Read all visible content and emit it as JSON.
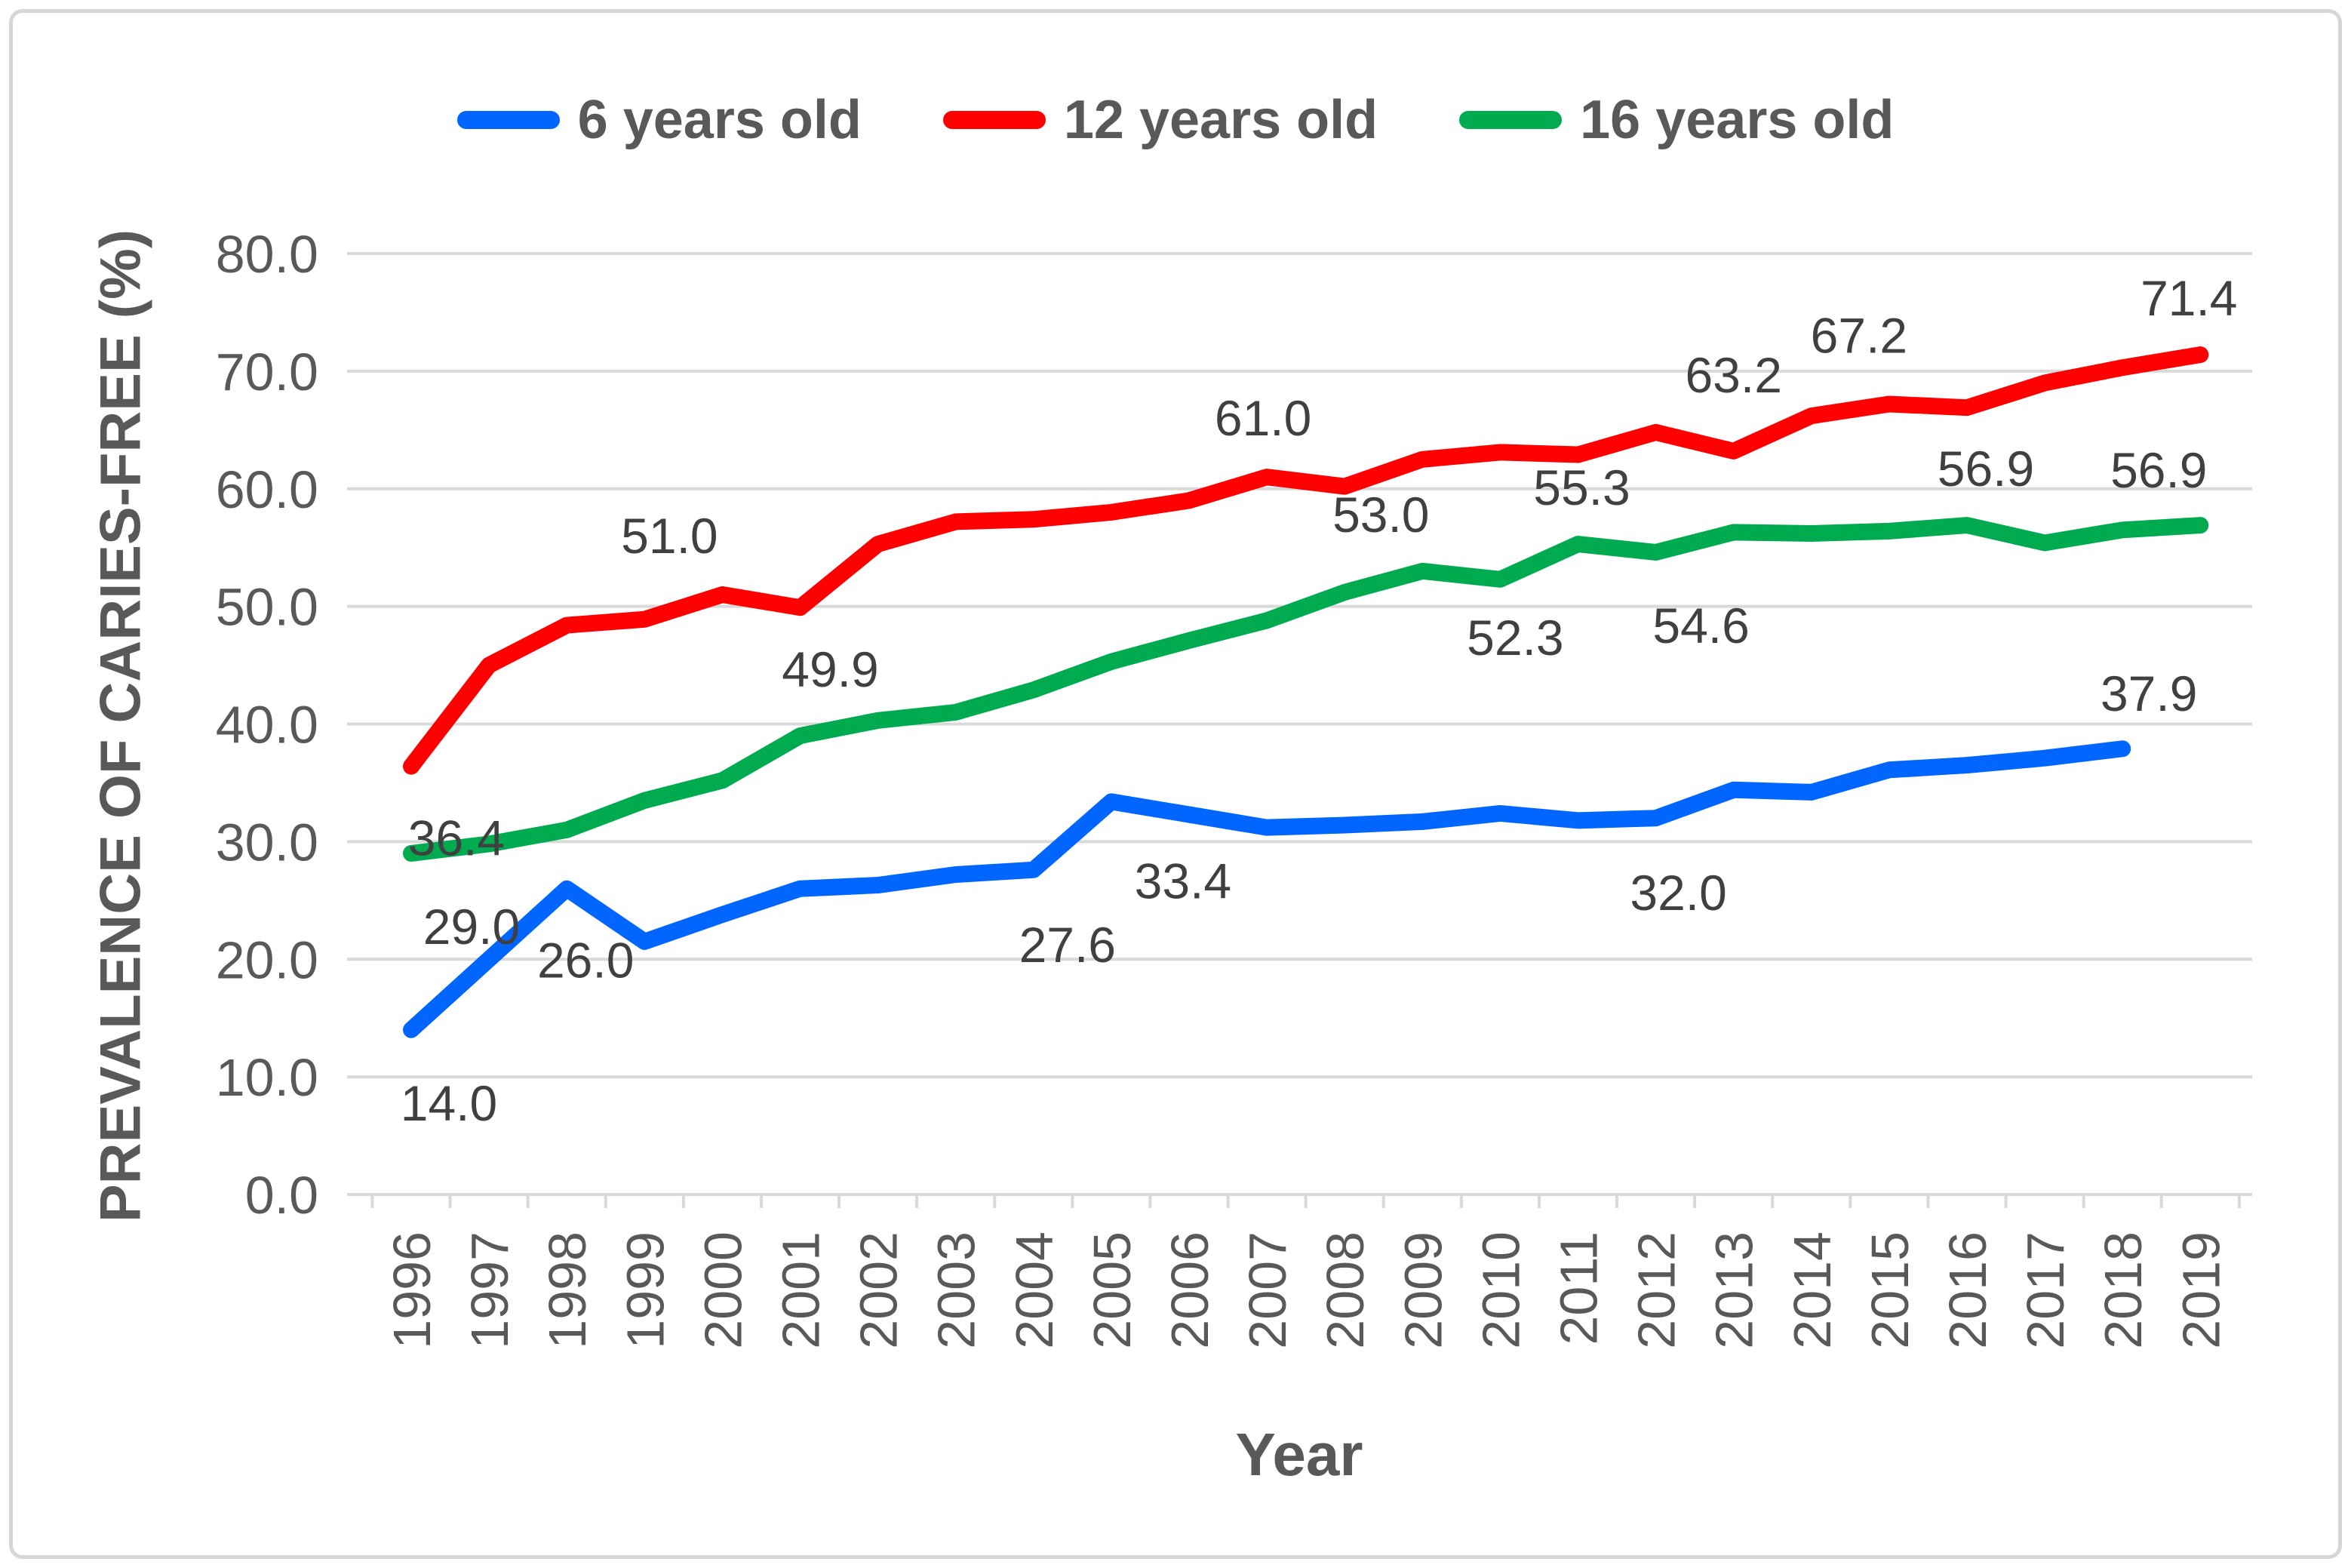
{
  "chart_data": {
    "type": "line",
    "title": "",
    "xlabel": "Year",
    "ylabel": "PREVALENCE OF CARIES-FREE (%)",
    "x": [
      1996,
      1997,
      1998,
      1999,
      2000,
      2001,
      2002,
      2003,
      2004,
      2005,
      2006,
      2007,
      2008,
      2009,
      2010,
      2011,
      2012,
      2013,
      2014,
      2015,
      2016,
      2017,
      2018,
      2019
    ],
    "ylim": [
      0,
      80
    ],
    "y_tick_step": 10,
    "y_tick_labels": [
      "0.0",
      "10.0",
      "20.0",
      "30.0",
      "40.0",
      "50.0",
      "60.0",
      "70.0",
      "80.0"
    ],
    "grid": true,
    "legend_position": "top",
    "gridline_color": "#d9d9d9",
    "axis_text_color": "#595959",
    "data_label_color": "#404040",
    "series": [
      {
        "name": "6 years old",
        "color": "#0066ff",
        "values": [
          14.0,
          20.0,
          26.0,
          21.5,
          23.8,
          26.0,
          26.3,
          27.2,
          27.6,
          33.4,
          32.3,
          31.2,
          31.4,
          31.7,
          32.4,
          31.8,
          32.0,
          34.4,
          34.2,
          36.1,
          36.5,
          37.1,
          37.9,
          null
        ],
        "point_labels": [
          {
            "year": 1996,
            "text": "14.0"
          },
          {
            "year": 1998,
            "text": "26.0"
          },
          {
            "year": 2004,
            "text": "27.6"
          },
          {
            "year": 2005,
            "text": "33.4"
          },
          {
            "year": 2012,
            "text": "32.0"
          },
          {
            "year": 2018,
            "text": "37.9"
          }
        ]
      },
      {
        "name": "12 years old",
        "color": "#fe0000",
        "values": [
          36.4,
          45.0,
          48.4,
          48.9,
          51.0,
          49.9,
          55.3,
          57.2,
          57.4,
          58.0,
          59.0,
          61.0,
          60.2,
          62.5,
          63.1,
          62.9,
          64.8,
          63.2,
          66.2,
          67.2,
          66.9,
          69.0,
          70.3,
          71.4
        ],
        "point_labels": [
          {
            "year": 1996,
            "text": "36.4"
          },
          {
            "year": 2000,
            "text": "51.0"
          },
          {
            "year": 2001,
            "text": "49.9"
          },
          {
            "year": 2007,
            "text": "61.0"
          },
          {
            "year": 2013,
            "text": "63.2"
          },
          {
            "year": 2015,
            "text": "67.2"
          },
          {
            "year": 2019,
            "text": "71.4"
          }
        ]
      },
      {
        "name": "16 years old",
        "color": "#00ab50",
        "values": [
          29.0,
          29.8,
          31.0,
          33.5,
          35.2,
          39.0,
          40.3,
          41.0,
          42.9,
          45.3,
          47.1,
          48.8,
          51.2,
          53.0,
          52.3,
          55.3,
          54.6,
          56.3,
          56.2,
          56.4,
          56.9,
          55.4,
          56.5,
          56.9
        ],
        "point_labels": [
          {
            "year": 1996,
            "text": "29.0"
          },
          {
            "year": 2009,
            "text": "53.0"
          },
          {
            "year": 2010,
            "text": "52.3"
          },
          {
            "year": 2011,
            "text": "55.3"
          },
          {
            "year": 2012,
            "text": "54.6"
          },
          {
            "year": 2016,
            "text": "56.9"
          },
          {
            "year": 2019,
            "text": "56.9"
          }
        ]
      }
    ]
  }
}
